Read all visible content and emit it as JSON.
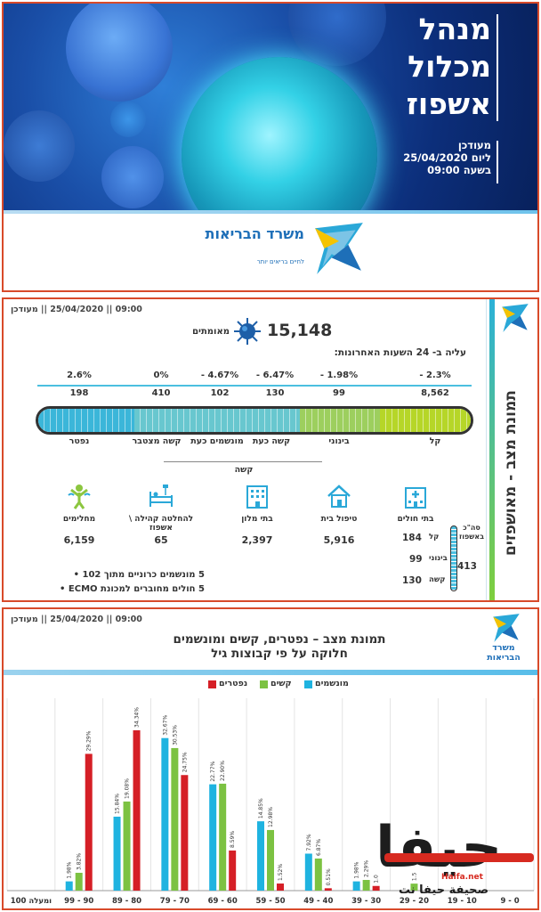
{
  "cover": {
    "title_lines": [
      "מנהל",
      "מכלול",
      "אשפוז"
    ],
    "date_lines": [
      "מעודכן",
      "ליום 25/04/2020",
      "בשעה 09:00"
    ],
    "ministry_name": "משרד הבריאות",
    "ministry_slogan": "לחיים בריאים יותר"
  },
  "status": {
    "updated": "09:00 || 25/04/2020 || מעודכן",
    "side_title": "תמונת מצב - מאושפזים",
    "confirmed_value": "15,148",
    "confirmed_label": "מאומתים",
    "rise_label": "עליה ב- 24 השעות האחרונות:",
    "percents": [
      "2.6%",
      "0%",
      "- 4.67%",
      "- 6.47%",
      "- 1.98%",
      "- 2.3%"
    ],
    "values": [
      "198",
      "410",
      "102",
      "130",
      "99",
      "8,562"
    ],
    "categories": [
      "נפטר",
      "קשה מצטבר",
      "מונשמים כעת",
      "קשה כעת",
      "בינוני",
      "קל"
    ],
    "severe_group_label": "קשה",
    "thermo_colors": [
      "#3bb6d9",
      "#68c7cf",
      "#9dcf5e",
      "#b6d628"
    ],
    "locations": [
      {
        "label": "מחלימים",
        "value": "6,159",
        "icon": "person-recovered-icon"
      },
      {
        "label": "להחלטה קהילה \\ אשפוז",
        "value": "65",
        "icon": "hospital-bed-icon"
      },
      {
        "label": "בתי מלון",
        "value": "2,397",
        "icon": "hotel-icon"
      },
      {
        "label": "טיפול בית",
        "value": "5,916",
        "icon": "home-icon"
      },
      {
        "label": "בתי חולים",
        "value": "",
        "icon": "hospital-icon"
      }
    ],
    "hospital_breakdown": [
      {
        "label": "קל",
        "value": "184"
      },
      {
        "label": "בינוני",
        "value": "99"
      },
      {
        "label": "קשה",
        "value": "130"
      }
    ],
    "total_label": "סה\"כ באשפוז",
    "total_value": "413",
    "notes": [
      "5 מונשמים כרוניים מתוך 102",
      "5 חולים מחוברים למכונת ECMO"
    ]
  },
  "age_chart": {
    "updated": "09:00 || 25/04/2020 || מעודכן",
    "title_lines": [
      "תמונת מצב – נפטרים, קשים ומונשמים",
      "חלוקה על פי קבוצות גיל"
    ],
    "org_lines": [
      "משרד",
      "הבריאות"
    ],
    "legend": [
      "נפטרים",
      "קשים",
      "מונשמים"
    ]
  },
  "watermark": {
    "main": "حيفا",
    "en": "Haifa.net",
    "sub": "صحيفة حيفا نت"
  },
  "chart_data": {
    "type": "bar",
    "categories": [
      "100 ומעלה",
      "99 - 90",
      "89 - 80",
      "79 - 70",
      "69 - 60",
      "59 - 50",
      "49 - 40",
      "39 - 30",
      "29 - 20",
      "19 - 10",
      "9 - 0"
    ],
    "series": [
      {
        "name": "מונשמים",
        "color": "#1fb3e0",
        "values": [
          null,
          1.98,
          15.84,
          32.67,
          22.77,
          14.85,
          7.92,
          1.98,
          null,
          null,
          null
        ],
        "labels": [
          null,
          "1.98%",
          "15.84%",
          "32.67%",
          "22.77%",
          "14.85%",
          "7.92%",
          "1.98%",
          null,
          null,
          null
        ]
      },
      {
        "name": "קשים",
        "color": "#7cc242",
        "values": [
          null,
          3.82,
          19.08,
          30.53,
          22.9,
          12.98,
          6.87,
          2.29,
          1.5,
          null,
          null
        ],
        "labels": [
          null,
          "3.82%",
          "19.08%",
          "30.53%",
          "22.90%",
          "12.98%",
          "6.87%",
          "2.29%",
          "1.5",
          null,
          null
        ]
      },
      {
        "name": "נפטרים",
        "color": "#d51f26",
        "values": [
          null,
          29.29,
          34.34,
          24.75,
          8.59,
          1.52,
          0.51,
          1.0,
          null,
          null,
          null
        ],
        "labels": [
          null,
          "29.29%",
          "34.34%",
          "24.75%",
          "8.59%",
          "1.52%",
          "0.51%",
          "1.0",
          null,
          null,
          null
        ]
      }
    ],
    "ylim": [
      0,
      40
    ],
    "grid": true,
    "legend_position": "top-center"
  }
}
